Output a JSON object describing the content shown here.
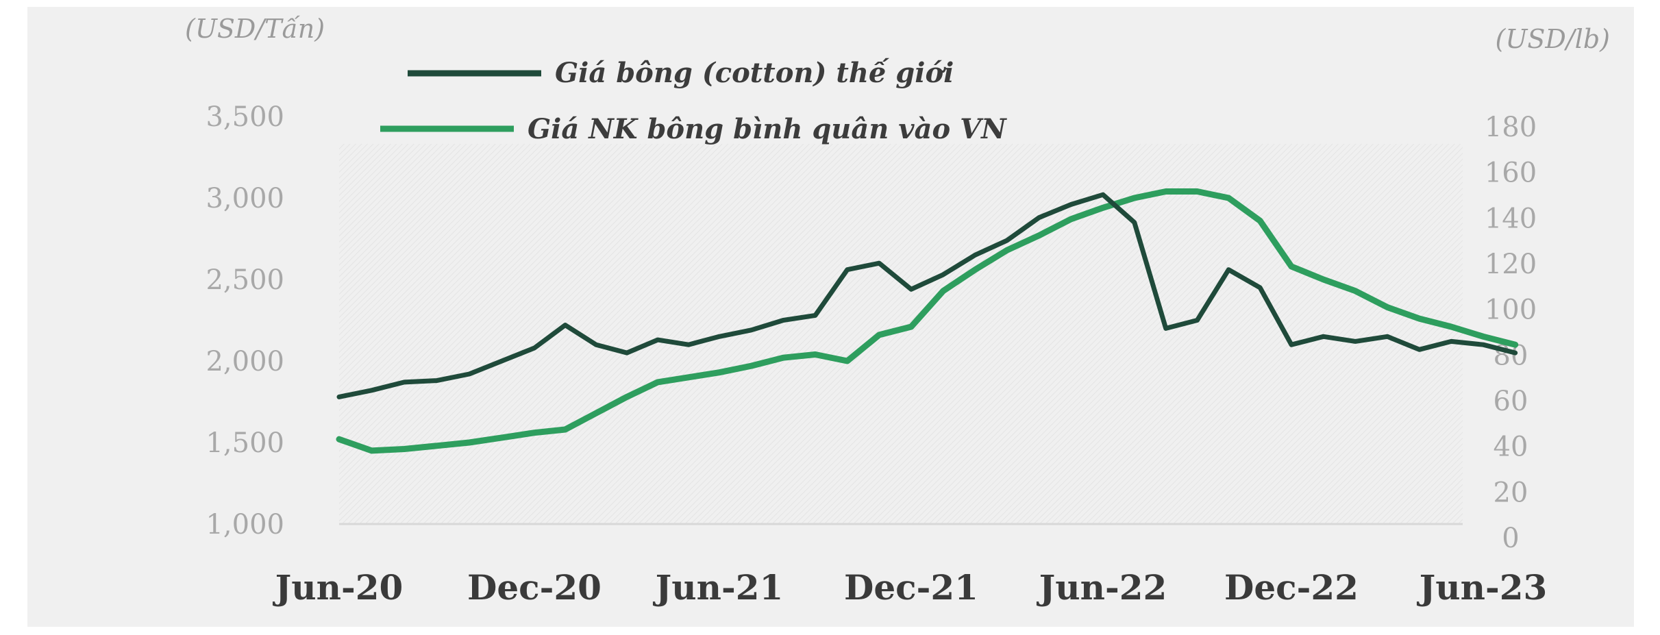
{
  "chart_data": {
    "type": "line",
    "left_axis_unit": "(USD/Tấn)",
    "right_axis_unit": "(USD/lb)",
    "x_tick_labels": [
      "Jun-20",
      "Dec-20",
      "Jun-21",
      "Dec-21",
      "Jun-22",
      "Dec-22",
      "Jun-23"
    ],
    "ylim_left": [
      1000,
      3500
    ],
    "y_ticks_left": [
      "3,500",
      "3,000",
      "2,500",
      "2,000",
      "1,500",
      "1,000"
    ],
    "ylim_right": [
      0,
      180
    ],
    "y_ticks_right": [
      "180",
      "160",
      "140",
      "120",
      "100",
      "80",
      "60",
      "40",
      "20",
      "0"
    ],
    "grid": false,
    "legend_position": "top-left",
    "series": [
      {
        "name": "Giá bông (cotton) thế giới",
        "axis": "left",
        "color": "#1f4a3a",
        "x": [
          "2020-06",
          "2020-07",
          "2020-08",
          "2020-09",
          "2020-10",
          "2020-11",
          "2020-12",
          "2021-01",
          "2021-02",
          "2021-03",
          "2021-04",
          "2021-05",
          "2021-06",
          "2021-07",
          "2021-08",
          "2021-09",
          "2021-10",
          "2021-11",
          "2021-12",
          "2022-01",
          "2022-02",
          "2022-03",
          "2022-04",
          "2022-05",
          "2022-06",
          "2022-07",
          "2022-08",
          "2022-09",
          "2022-10",
          "2022-11",
          "2022-12",
          "2023-01",
          "2023-02",
          "2023-03",
          "2023-04",
          "2023-05",
          "2023-06",
          "2023-07"
        ],
        "values": [
          1780,
          1820,
          1870,
          1880,
          1920,
          2000,
          2080,
          2220,
          2100,
          2050,
          2130,
          2100,
          2150,
          2190,
          2250,
          2280,
          2560,
          2600,
          2440,
          2530,
          2650,
          2740,
          2880,
          2960,
          3020,
          2850,
          2200,
          2250,
          2560,
          2450,
          2100,
          2150,
          2120,
          2150,
          2070,
          2120,
          2100,
          2050
        ]
      },
      {
        "name": "Giá NK bông bình quân vào VN",
        "axis": "left",
        "color": "#2e9e5e",
        "x": [
          "2020-06",
          "2020-07",
          "2020-08",
          "2020-09",
          "2020-10",
          "2020-11",
          "2020-12",
          "2021-01",
          "2021-02",
          "2021-03",
          "2021-04",
          "2021-05",
          "2021-06",
          "2021-07",
          "2021-08",
          "2021-09",
          "2021-10",
          "2021-11",
          "2021-12",
          "2022-01",
          "2022-02",
          "2022-03",
          "2022-04",
          "2022-05",
          "2022-06",
          "2022-07",
          "2022-08",
          "2022-09",
          "2022-10",
          "2022-11",
          "2022-12",
          "2023-01",
          "2023-02",
          "2023-03",
          "2023-04",
          "2023-05",
          "2023-06",
          "2023-07"
        ],
        "values": [
          1520,
          1450,
          1460,
          1480,
          1500,
          1530,
          1560,
          1580,
          1680,
          1780,
          1870,
          1900,
          1930,
          1970,
          2020,
          2040,
          2000,
          2160,
          2210,
          2430,
          2560,
          2680,
          2770,
          2870,
          2940,
          3000,
          3040,
          3040,
          3000,
          2860,
          2580,
          2500,
          2430,
          2330,
          2260,
          2210,
          2150,
          2100
        ]
      }
    ]
  }
}
